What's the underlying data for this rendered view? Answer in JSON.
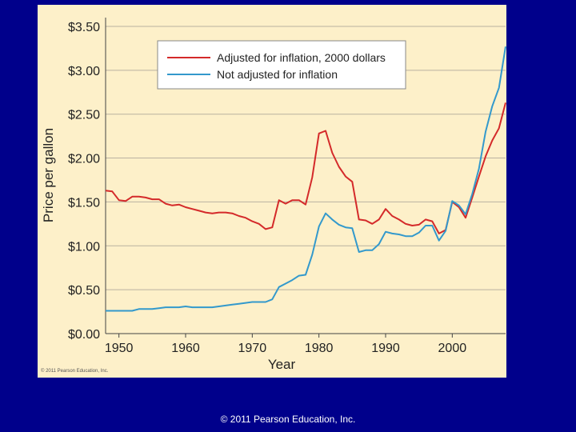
{
  "footer": "© 2011 Pearson Education, Inc.",
  "panel_copyright": "© 2011 Pearson Education, Inc.",
  "chart_data": {
    "type": "line",
    "title": "",
    "xlabel": "Year",
    "ylabel": "Price per gallon",
    "xlim": [
      1948,
      2008
    ],
    "ylim": [
      0,
      3.6
    ],
    "x_ticks": [
      1950,
      1960,
      1970,
      1980,
      1990,
      2000
    ],
    "x_tick_labels": [
      "1950",
      "1960",
      "1970",
      "1980",
      "1990",
      "2000"
    ],
    "y_ticks": [
      0,
      0.5,
      1.0,
      1.5,
      2.0,
      2.5,
      3.0,
      3.5
    ],
    "y_tick_labels": [
      "$0.00",
      "$0.50",
      "$1.00",
      "$1.50",
      "$2.00",
      "$2.50",
      "$3.00",
      "$3.50"
    ],
    "grid": "horizontal",
    "legend_position": "top-right",
    "series": [
      {
        "name": "Adjusted for inflation, 2000 dollars",
        "color": "#d42a2a",
        "x": [
          1948,
          1949,
          1950,
          1951,
          1952,
          1953,
          1954,
          1955,
          1956,
          1957,
          1958,
          1959,
          1960,
          1961,
          1962,
          1963,
          1964,
          1965,
          1966,
          1967,
          1968,
          1969,
          1970,
          1971,
          1972,
          1973,
          1974,
          1975,
          1976,
          1977,
          1978,
          1979,
          1980,
          1981,
          1982,
          1983,
          1984,
          1985,
          1986,
          1987,
          1988,
          1989,
          1990,
          1991,
          1992,
          1993,
          1994,
          1995,
          1996,
          1997,
          1998,
          1999,
          2000,
          2001,
          2002,
          2003,
          2004,
          2005,
          2006,
          2007,
          2008
        ],
        "values": [
          1.63,
          1.62,
          1.52,
          1.51,
          1.56,
          1.56,
          1.55,
          1.53,
          1.53,
          1.48,
          1.46,
          1.47,
          1.44,
          1.42,
          1.4,
          1.38,
          1.37,
          1.38,
          1.38,
          1.37,
          1.34,
          1.32,
          1.28,
          1.25,
          1.19,
          1.21,
          1.52,
          1.48,
          1.52,
          1.52,
          1.47,
          1.78,
          2.28,
          2.31,
          2.06,
          1.9,
          1.79,
          1.73,
          1.3,
          1.29,
          1.25,
          1.3,
          1.42,
          1.34,
          1.3,
          1.25,
          1.23,
          1.24,
          1.3,
          1.28,
          1.14,
          1.18,
          1.5,
          1.44,
          1.32,
          1.55,
          1.79,
          2.02,
          2.2,
          2.34,
          2.63
        ]
      },
      {
        "name": "Not adjusted for inflation",
        "color": "#3399cc",
        "x": [
          1948,
          1949,
          1950,
          1951,
          1952,
          1953,
          1954,
          1955,
          1956,
          1957,
          1958,
          1959,
          1960,
          1961,
          1962,
          1963,
          1964,
          1965,
          1966,
          1967,
          1968,
          1969,
          1970,
          1971,
          1972,
          1973,
          1974,
          1975,
          1976,
          1977,
          1978,
          1979,
          1980,
          1981,
          1982,
          1983,
          1984,
          1985,
          1986,
          1987,
          1988,
          1989,
          1990,
          1991,
          1992,
          1993,
          1994,
          1995,
          1996,
          1997,
          1998,
          1999,
          2000,
          2001,
          2002,
          2003,
          2004,
          2005,
          2006,
          2007,
          2008
        ],
        "values": [
          0.26,
          0.26,
          0.26,
          0.26,
          0.26,
          0.28,
          0.28,
          0.28,
          0.29,
          0.3,
          0.3,
          0.3,
          0.31,
          0.3,
          0.3,
          0.3,
          0.3,
          0.31,
          0.32,
          0.33,
          0.34,
          0.35,
          0.36,
          0.36,
          0.36,
          0.39,
          0.53,
          0.57,
          0.61,
          0.66,
          0.67,
          0.9,
          1.22,
          1.37,
          1.3,
          1.24,
          1.21,
          1.2,
          0.93,
          0.95,
          0.95,
          1.02,
          1.16,
          1.14,
          1.13,
          1.11,
          1.11,
          1.15,
          1.23,
          1.23,
          1.06,
          1.17,
          1.51,
          1.46,
          1.36,
          1.59,
          1.88,
          2.3,
          2.59,
          2.8,
          3.27
        ]
      }
    ]
  }
}
